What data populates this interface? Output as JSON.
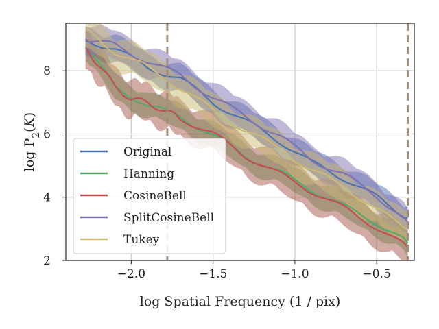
{
  "chart_data": {
    "type": "line",
    "xlabel": "log Spatial Frequency (1 / pix)",
    "ylabel_prefix": "log P",
    "ylabel_sub": "2",
    "ylabel_suffix": "(",
    "ylabel_var": "K",
    "ylabel_close": ")",
    "xlim": [
      -2.4,
      -0.27
    ],
    "ylim": [
      2,
      9.5
    ],
    "x_ticks": [
      {
        "value": -2.0,
        "label": "−2.0"
      },
      {
        "value": -1.5,
        "label": "−1.5"
      },
      {
        "value": -1.0,
        "label": "−1.0"
      },
      {
        "value": -0.5,
        "label": "−0.5"
      }
    ],
    "y_ticks": [
      {
        "value": 2,
        "label": "2"
      },
      {
        "value": 4,
        "label": "4"
      },
      {
        "value": 6,
        "label": "6"
      },
      {
        "value": 8,
        "label": "8"
      }
    ],
    "grid": true,
    "legend_position": "lower-left",
    "vlines": [
      -1.78,
      -0.31
    ],
    "vline_color": "#a08a78",
    "series": [
      {
        "name": "Original",
        "color": "#4c72b0",
        "band_color": "#4c72b0",
        "x": [
          -2.28,
          -2.1,
          -1.9,
          -1.7,
          -1.5,
          -1.3,
          -1.1,
          -0.9,
          -0.7,
          -0.5,
          -0.31
        ],
        "values": [
          8.95,
          8.7,
          8.1,
          7.75,
          7.0,
          6.4,
          5.8,
          5.1,
          4.6,
          4.0,
          3.35
        ],
        "band": 0.32
      },
      {
        "name": "Hanning",
        "color": "#55a868",
        "band_color": "#55a868",
        "x": [
          -2.28,
          -2.1,
          -1.9,
          -1.7,
          -1.5,
          -1.3,
          -1.1,
          -0.9,
          -0.7,
          -0.5,
          -0.31
        ],
        "values": [
          8.75,
          7.5,
          6.9,
          6.55,
          5.95,
          5.3,
          4.8,
          4.25,
          3.7,
          3.2,
          2.55
        ],
        "band": 0.3
      },
      {
        "name": "CosineBell",
        "color": "#c44e52",
        "band_color": "#a4584a",
        "x": [
          -2.28,
          -2.2,
          -2.1,
          -2.0,
          -1.9,
          -1.78,
          -1.7,
          -1.5,
          -1.3,
          -1.1,
          -0.9,
          -0.7,
          -0.5,
          -0.31
        ],
        "values": [
          8.7,
          8.2,
          7.5,
          7.1,
          7.0,
          6.7,
          6.5,
          6.0,
          5.3,
          4.75,
          4.2,
          3.65,
          3.05,
          2.4
        ],
        "band": 0.45
      },
      {
        "name": "SplitCosineBell",
        "color": "#8172b2",
        "band_color": "#8172b2",
        "x": [
          -2.28,
          -2.1,
          -1.9,
          -1.7,
          -1.5,
          -1.3,
          -1.1,
          -0.9,
          -0.7,
          -0.5,
          -0.31
        ],
        "values": [
          9.0,
          8.8,
          8.3,
          7.85,
          7.15,
          6.55,
          5.95,
          5.2,
          4.7,
          4.05,
          3.2
        ],
        "band": 0.35
      },
      {
        "name": "Tukey",
        "color": "#ccb974",
        "band_color": "#ccb974",
        "x": [
          -2.28,
          -2.1,
          -1.9,
          -1.7,
          -1.5,
          -1.3,
          -1.1,
          -0.9,
          -0.7,
          -0.5,
          -0.31
        ],
        "values": [
          9.3,
          8.6,
          8.1,
          7.45,
          6.75,
          6.1,
          5.55,
          4.85,
          4.35,
          3.6,
          3.0
        ],
        "band": 0.4
      }
    ]
  }
}
